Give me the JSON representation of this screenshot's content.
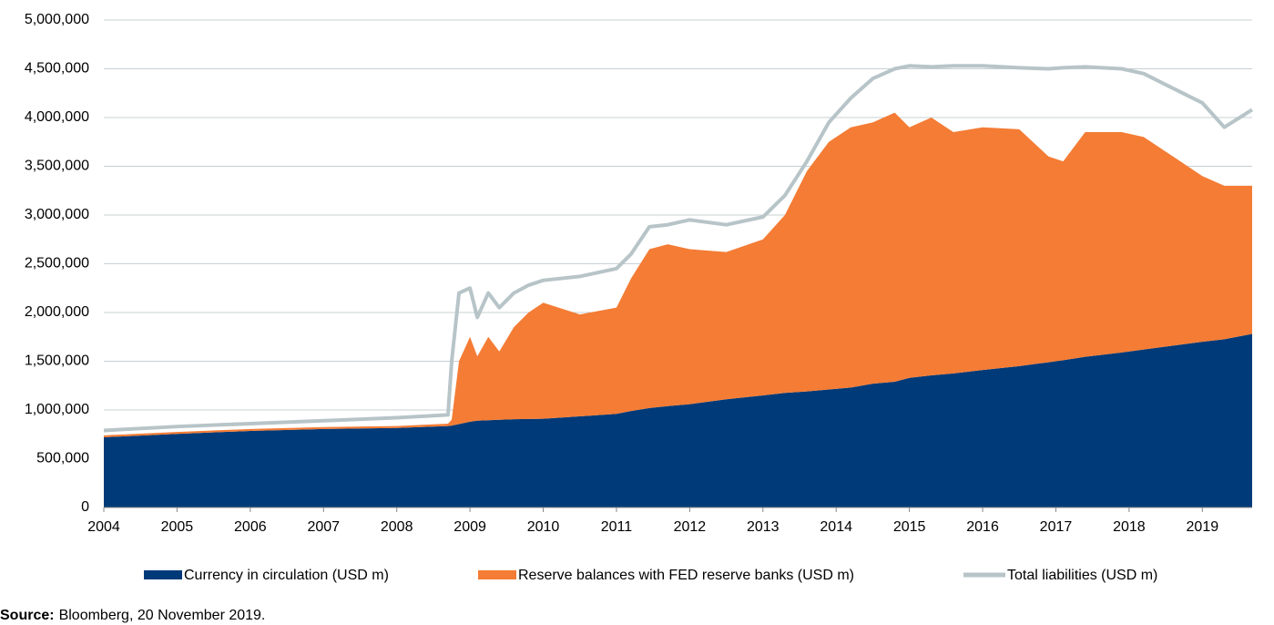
{
  "chart_data": {
    "type": "stacked-area-line",
    "x": [
      2004,
      2005,
      2006,
      2007,
      2008,
      2008.7,
      2008.75,
      2008.85,
      2009,
      2009.1,
      2009.25,
      2009.4,
      2009.6,
      2009.8,
      2010,
      2010.5,
      2011,
      2011.2,
      2011.45,
      2011.7,
      2012,
      2012.5,
      2013,
      2013.3,
      2013.6,
      2013.9,
      2014.2,
      2014.5,
      2014.8,
      2015,
      2015.3,
      2015.6,
      2016,
      2016.5,
      2016.9,
      2017.1,
      2017.4,
      2017.9,
      2018.2,
      2018.6,
      2019,
      2019.3,
      2019.68
    ],
    "series": [
      {
        "name": "Currency in circulation (USD m)",
        "color": "#003a78",
        "kind": "area",
        "values": [
          720000,
          755000,
          785000,
          805000,
          815000,
          835000,
          840000,
          855000,
          880000,
          890000,
          895000,
          900000,
          905000,
          908000,
          910000,
          935000,
          960000,
          990000,
          1020000,
          1040000,
          1060000,
          1110000,
          1150000,
          1175000,
          1190000,
          1210000,
          1230000,
          1270000,
          1290000,
          1330000,
          1355000,
          1375000,
          1410000,
          1450000,
          1490000,
          1510000,
          1545000,
          1590000,
          1620000,
          1660000,
          1700000,
          1725000,
          1780000
        ]
      },
      {
        "name": "Reserve balances with FED reserve banks (USD m)",
        "color": "#f47c35",
        "kind": "area",
        "values": [
          20000,
          20000,
          20000,
          20000,
          20000,
          25000,
          60000,
          645000,
          870000,
          660000,
          855000,
          700000,
          945000,
          1092000,
          1190000,
          1045000,
          1090000,
          1360000,
          1630000,
          1660000,
          1590000,
          1510000,
          1600000,
          1825000,
          2260000,
          2540000,
          2670000,
          2680000,
          2760000,
          2570000,
          2645000,
          2475000,
          2490000,
          2430000,
          2110000,
          2040000,
          2305000,
          2260000,
          2180000,
          1940000,
          1700000,
          1575000,
          1520000
        ]
      },
      {
        "name": "Total liabilities (USD m)",
        "color": "#b7c4c8",
        "kind": "line",
        "values": [
          790000,
          830000,
          860000,
          890000,
          920000,
          950000,
          1500000,
          2200000,
          2250000,
          1950000,
          2200000,
          2050000,
          2200000,
          2280000,
          2330000,
          2370000,
          2450000,
          2600000,
          2880000,
          2900000,
          2950000,
          2900000,
          2980000,
          3200000,
          3550000,
          3950000,
          4200000,
          4400000,
          4500000,
          4530000,
          4520000,
          4530000,
          4530000,
          4510000,
          4500000,
          4510000,
          4520000,
          4500000,
          4450000,
          4300000,
          4150000,
          3900000,
          4080000
        ]
      }
    ],
    "xlim": [
      2004,
      2019.68
    ],
    "xticks": [
      2004,
      2005,
      2006,
      2007,
      2008,
      2009,
      2010,
      2011,
      2012,
      2013,
      2014,
      2015,
      2016,
      2017,
      2018,
      2019
    ],
    "ylim": [
      0,
      5000000
    ],
    "yticks": [
      0,
      {
        "value": 500000,
        "label": "500,000"
      },
      {
        "value": 1000000,
        "label": "1,000,000"
      },
      {
        "value": 1500000,
        "label": "1,500,000"
      },
      {
        "value": 2000000,
        "label": "2,000,000"
      },
      {
        "value": 2500000,
        "label": "2,500,000"
      },
      {
        "value": 3000000,
        "label": "3,000,000"
      },
      {
        "value": 3500000,
        "label": "3,500,000"
      },
      {
        "value": 4000000,
        "label": "4,000,000"
      },
      {
        "value": 4500000,
        "label": "4,500,000"
      },
      {
        "value": 5000000,
        "label": "5,000,000"
      }
    ],
    "grid": true,
    "legend": "bottom",
    "source_label": "Source:",
    "source_text": "Bloomberg, 20 November 2019."
  }
}
